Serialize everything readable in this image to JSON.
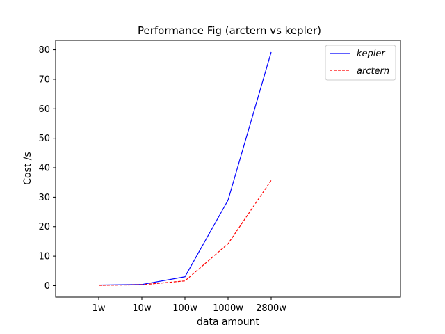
{
  "chart_data": {
    "type": "line",
    "title": "Performance Fig (arctern vs kepler)",
    "xlabel": "data amount",
    "ylabel": "Cost /s",
    "categories": [
      "1w",
      "10w",
      "100w",
      "1000w",
      "2800w"
    ],
    "ylim": [
      -3.9,
      83.2
    ],
    "yticks": [
      0,
      10,
      20,
      30,
      40,
      50,
      60,
      70,
      80
    ],
    "x_positions": [
      1,
      2,
      3,
      4,
      5
    ],
    "xlim": [
      0,
      8
    ],
    "grid": false,
    "legend_position": "top-right",
    "series": [
      {
        "name": "kepler",
        "values": [
          0.2,
          0.4,
          3.0,
          29.0,
          79.2
        ],
        "color": "#0000ff",
        "style": "solid"
      },
      {
        "name": "arctern",
        "values": [
          0.1,
          0.3,
          1.6,
          14.2,
          35.7
        ],
        "color": "#ff0000",
        "style": "dashed"
      }
    ]
  }
}
